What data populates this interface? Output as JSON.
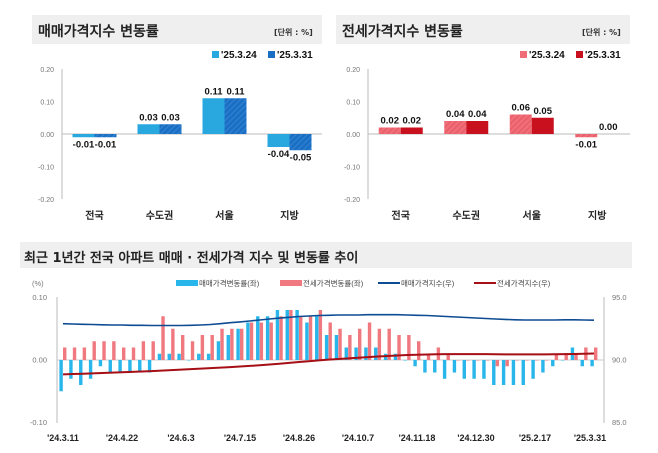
{
  "chart_data": [
    {
      "type": "bar",
      "title": "매매가격지수 변동률",
      "unit": "[단위 : %]",
      "categories": [
        "전국",
        "수도권",
        "서울",
        "지방"
      ],
      "ylim": [
        -0.2,
        0.2
      ],
      "yticks": [
        "0.20",
        "0.10",
        "0.00",
        "-0.10",
        "-0.20"
      ],
      "legend_position": "top-right",
      "series": [
        {
          "name": "'25.3.24",
          "values": [
            -0.01,
            0.03,
            0.11,
            -0.04
          ],
          "color": "#29a8e0"
        },
        {
          "name": "'25.3.31",
          "values": [
            -0.01,
            0.03,
            0.11,
            -0.05
          ],
          "color": "#1a6fc4"
        }
      ]
    },
    {
      "type": "bar",
      "title": "전세가격지수 변동률",
      "unit": "[단위 : %]",
      "categories": [
        "전국",
        "수도권",
        "서울",
        "지방"
      ],
      "ylim": [
        -0.2,
        0.2
      ],
      "yticks": [
        "0.20",
        "0.10",
        "0.00",
        "-0.10",
        "-0.20"
      ],
      "legend_position": "top-right",
      "series": [
        {
          "name": "'25.3.24",
          "values": [
            0.02,
            0.04,
            0.06,
            -0.01
          ],
          "color": "#f06d77"
        },
        {
          "name": "'25.3.31",
          "values": [
            0.02,
            0.04,
            0.05,
            0.0
          ],
          "color": "#c8101e"
        }
      ]
    },
    {
      "type": "bar+line",
      "title": "최근 1년간 전국 아파트 매매 · 전세가격 지수 및 변동률 추이",
      "ylabel_left": "(%)",
      "ylim_left": [
        -0.1,
        0.1
      ],
      "yticks_left": [
        "0.10",
        "0.00",
        "-0.10"
      ],
      "ylim_right": [
        85,
        95
      ],
      "yticks_right": [
        "95.0",
        "90.0",
        "85.0"
      ],
      "legend_position": "top",
      "xtick_labels": [
        "'24.3.11",
        "'24.4.22",
        "'24.6.3",
        "'24.7.15",
        "'24.8.26",
        "'24.10.7",
        "'24.11.18",
        "'24.12.30",
        "'25.2.17",
        "'25.3.31"
      ],
      "series": [
        {
          "name": "매매가격변동률(좌)",
          "type": "bar",
          "axis": "left",
          "color": "#29b6ea",
          "values": [
            -0.05,
            -0.03,
            -0.04,
            -0.03,
            -0.01,
            -0.02,
            -0.02,
            -0.02,
            -0.02,
            -0.02,
            0.01,
            0.01,
            0.01,
            0.0,
            0.01,
            0.01,
            0.03,
            0.04,
            0.05,
            0.06,
            0.07,
            0.07,
            0.08,
            0.08,
            0.08,
            0.06,
            0.07,
            0.04,
            0.04,
            0.02,
            0.02,
            0.02,
            0.02,
            0.01,
            0.01,
            0.0,
            -0.01,
            -0.02,
            -0.02,
            -0.03,
            -0.02,
            -0.03,
            -0.03,
            -0.03,
            -0.04,
            -0.04,
            -0.04,
            -0.04,
            -0.03,
            -0.02,
            -0.01,
            0.0,
            0.02,
            -0.01,
            -0.01
          ]
        },
        {
          "name": "전세가격변동률(좌)",
          "type": "bar",
          "axis": "left",
          "color": "#f0787f",
          "values": [
            0.02,
            0.02,
            0.02,
            0.03,
            0.03,
            0.03,
            0.02,
            0.02,
            0.03,
            0.03,
            0.07,
            0.05,
            0.04,
            0.03,
            0.04,
            0.04,
            0.05,
            0.05,
            0.05,
            0.06,
            0.06,
            0.06,
            0.07,
            0.08,
            0.07,
            0.07,
            0.08,
            0.06,
            0.05,
            0.04,
            0.05,
            0.06,
            0.05,
            0.05,
            0.04,
            0.04,
            0.03,
            0.01,
            0.02,
            0.01,
            0.0,
            0.0,
            0.0,
            0.0,
            -0.01,
            -0.01,
            0.0,
            0.0,
            0.0,
            0.0,
            0.01,
            0.01,
            0.01,
            0.02,
            0.02
          ]
        },
        {
          "name": "매매가격지수(우)",
          "type": "line",
          "axis": "right",
          "color": "#0d4c93",
          "values": [
            92.9,
            92.88,
            92.86,
            92.84,
            92.82,
            92.8,
            92.8,
            92.78,
            92.78,
            92.76,
            92.76,
            92.76,
            92.76,
            92.78,
            92.8,
            92.84,
            92.9,
            92.98,
            93.05,
            93.12,
            93.2,
            93.28,
            93.35,
            93.42,
            93.48,
            93.52,
            93.56,
            93.58,
            93.6,
            93.6,
            93.6,
            93.62,
            93.62,
            93.62,
            93.62,
            93.6,
            93.58,
            93.56,
            93.52,
            93.48,
            93.44,
            93.4,
            93.36,
            93.32,
            93.28,
            93.25,
            93.22,
            93.2,
            93.2,
            93.2,
            93.2,
            93.22,
            93.22,
            93.2,
            93.18
          ]
        },
        {
          "name": "전세가격지수(우)",
          "type": "line",
          "axis": "right",
          "color": "#a50f15",
          "values": [
            88.85,
            88.88,
            88.9,
            88.93,
            88.96,
            88.99,
            89.02,
            89.05,
            89.08,
            89.11,
            89.15,
            89.19,
            89.23,
            89.27,
            89.31,
            89.35,
            89.39,
            89.43,
            89.48,
            89.53,
            89.58,
            89.64,
            89.7,
            89.77,
            89.84,
            89.9,
            89.97,
            90.03,
            90.08,
            90.13,
            90.18,
            90.23,
            90.28,
            90.32,
            90.36,
            90.4,
            90.42,
            90.44,
            90.46,
            90.47,
            90.47,
            90.47,
            90.47,
            90.47,
            90.46,
            90.45,
            90.45,
            90.45,
            90.45,
            90.45,
            90.46,
            90.47,
            90.48,
            90.5,
            90.52
          ]
        }
      ]
    }
  ]
}
